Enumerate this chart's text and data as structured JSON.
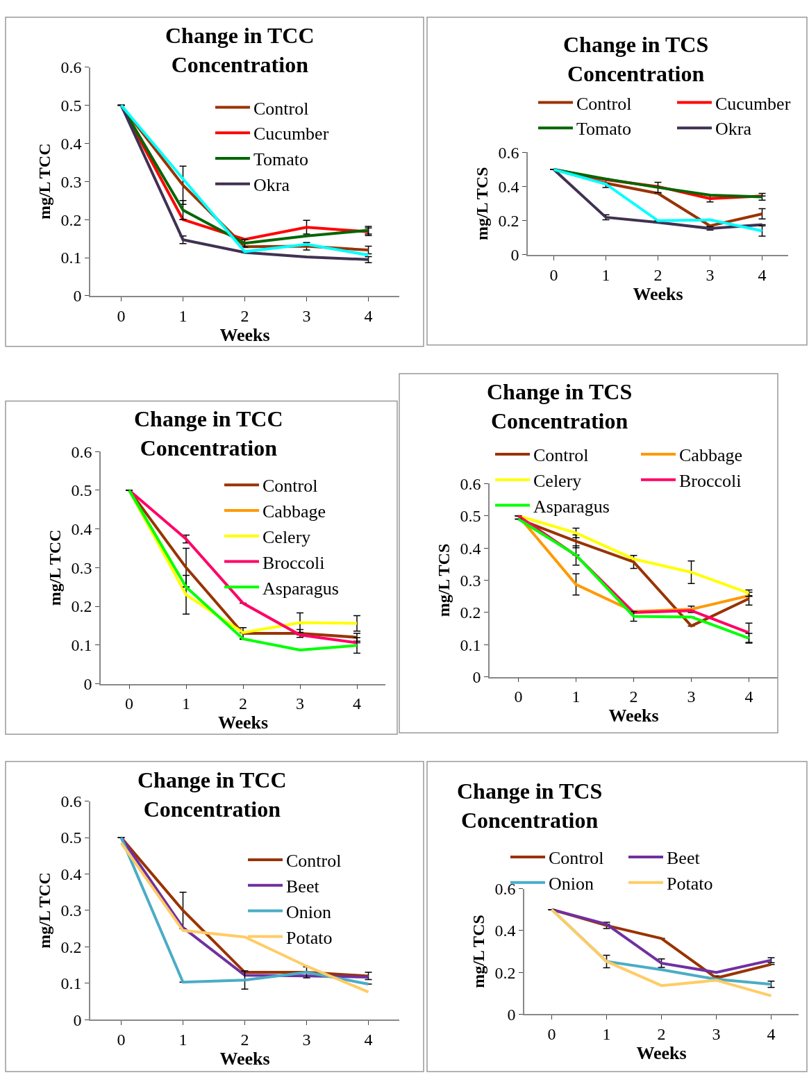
{
  "chart_data": [
    {
      "type": "line",
      "title": "Change in TCC Concentration",
      "xlabel": "Weeks",
      "ylabel": "mg/L TCC",
      "categories": [
        "0",
        "1",
        "2",
        "3",
        "4"
      ],
      "ylim": [
        0,
        0.6
      ],
      "yticks": [
        0,
        0.1,
        0.2,
        0.3,
        0.4,
        0.5,
        0.6
      ],
      "grid": false,
      "legend": "top right",
      "marker": "none",
      "line_style": "solid",
      "series": [
        {
          "name": "Control",
          "color": "#993300",
          "values": [
            0.5,
            0.29,
            0.129,
            0.13,
            0.12
          ],
          "errors": [
            null,
            0.05,
            null,
            0.01,
            0.01
          ]
        },
        {
          "name": "Cucumber",
          "color": "#ff0000",
          "values": [
            0.5,
            0.2,
            0.148,
            0.18,
            0.168
          ],
          "errors": [
            null,
            null,
            null,
            0.018,
            0.01
          ]
        },
        {
          "name": "Tomato",
          "color": "#006600",
          "values": [
            0.5,
            0.225,
            0.138,
            0.157,
            0.172
          ],
          "errors": [
            null,
            0.025,
            0.01,
            null,
            0.01
          ]
        },
        {
          "name": "Okra",
          "color": "#403152",
          "values": [
            0.5,
            0.147,
            0.114,
            0.102,
            0.095
          ],
          "errors": [
            null,
            0.01,
            null,
            null,
            0.008
          ]
        },
        {
          "color": "#00ffff",
          "values": [
            0.5,
            0.307,
            0.116,
            0.135,
            0.107
          ]
        }
      ]
    },
    {
      "type": "line",
      "title": "Change in TCS Concentration",
      "xlabel": "Weeks",
      "ylabel": "mg/L TCS",
      "categories": [
        "0",
        "1",
        "2",
        "3",
        "4"
      ],
      "ylim": [
        0,
        0.6
      ],
      "yticks": [
        0,
        0.2,
        0.4,
        0.6
      ],
      "grid": false,
      "legend": "top",
      "marker": "none",
      "line_style": "solid",
      "series": [
        {
          "name": "Control",
          "color": "#993300",
          "values": [
            0.5,
            0.42,
            0.36,
            0.17,
            0.24
          ],
          "errors": [
            null,
            0.025,
            null,
            null,
            0.03
          ]
        },
        {
          "name": "Cucumber",
          "color": "#ff0000",
          "values": [
            0.5,
            0.44,
            0.4,
            0.33,
            0.345
          ],
          "errors": [
            null,
            null,
            null,
            0.02,
            null
          ]
        },
        {
          "name": "Tomato",
          "color": "#006600",
          "values": [
            0.5,
            0.445,
            0.395,
            0.35,
            0.34
          ],
          "errors": [
            null,
            null,
            0.03,
            null,
            0.02
          ]
        },
        {
          "name": "Okra",
          "color": "#403152",
          "values": [
            0.5,
            0.22,
            0.19,
            0.155,
            0.177
          ],
          "errors": [
            null,
            0.015,
            null,
            0.01,
            null
          ]
        },
        {
          "color": "#00ffff",
          "values": [
            0.5,
            0.415,
            0.2,
            0.205,
            0.14
          ],
          "errors": [
            null,
            null,
            null,
            null,
            0.03
          ]
        }
      ]
    },
    {
      "type": "line",
      "title": "Change in TCC Concentration",
      "xlabel": "Weeks",
      "ylabel": "mg/L TCC",
      "categories": [
        "0",
        "1",
        "2",
        "3",
        "4"
      ],
      "ylim": [
        0,
        0.6
      ],
      "yticks": [
        0,
        0.1,
        0.2,
        0.3,
        0.4,
        0.5,
        0.6
      ],
      "grid": false,
      "legend": "top right",
      "marker": "none",
      "line_style": "solid",
      "series": [
        {
          "name": "Control",
          "color": "#993300",
          "values": [
            0.5,
            0.3,
            0.13,
            0.13,
            0.12
          ],
          "errors": [
            null,
            0.05,
            0.015,
            0.01,
            0.01
          ]
        },
        {
          "name": "Cabbage",
          "color": "#ff9900",
          "values": [
            null,
            null,
            null,
            null,
            null
          ]
        },
        {
          "name": "Celery",
          "color": "#ffff00",
          "values": [
            0.5,
            0.23,
            0.132,
            0.158,
            0.156
          ],
          "errors": [
            null,
            0.05,
            null,
            0.025,
            0.02
          ]
        },
        {
          "name": "Broccoli",
          "color": "#ff0066",
          "values": [
            0.5,
            0.374,
            0.208,
            0.126,
            0.106
          ],
          "errors": [
            null,
            0.01,
            null,
            null,
            null
          ]
        },
        {
          "name": "Asparagus",
          "color": "#00ff00",
          "values": [
            0.5,
            0.25,
            0.116,
            0.087,
            0.099
          ],
          "errors": [
            null,
            null,
            null,
            null,
            0.02
          ]
        }
      ]
    },
    {
      "type": "line",
      "title": "Change in TCS Concentration",
      "xlabel": "Weeks",
      "ylabel": "mg/L TCS",
      "categories": [
        "0",
        "1",
        "2",
        "3",
        "4"
      ],
      "ylim": [
        0,
        0.6
      ],
      "yticks": [
        0,
        0.1,
        0.2,
        0.3,
        0.4,
        0.5,
        0.6
      ],
      "grid": false,
      "legend": "top",
      "marker": "none",
      "line_style": "solid",
      "series": [
        {
          "name": "Control",
          "color": "#993300",
          "values": [
            0.49,
            0.421,
            0.357,
            0.158,
            0.243
          ],
          "errors": [
            null,
            0.02,
            0.02,
            null,
            0.02
          ]
        },
        {
          "name": "Cabbage",
          "color": "#ff9900",
          "values": [
            0.5,
            0.287,
            0.203,
            0.21,
            0.252
          ],
          "errors": [
            null,
            0.033,
            null,
            0.01,
            null
          ]
        },
        {
          "name": "Celery",
          "color": "#ffff00",
          "values": [
            0.5,
            0.447,
            0.366,
            0.325,
            0.26
          ],
          "errors": [
            null,
            0.015,
            null,
            0.035,
            0.01
          ]
        },
        {
          "name": "Broccoli",
          "color": "#ff0066",
          "values": [
            0.5,
            0.377,
            0.2,
            0.206,
            0.137
          ],
          "errors": [
            null,
            0.03,
            null,
            null,
            0.03
          ]
        },
        {
          "name": "Asparagus",
          "color": "#00ff00",
          "values": [
            0.49,
            0.378,
            0.188,
            0.186,
            0.12
          ],
          "errors": [
            null,
            null,
            0.015,
            null,
            0.015
          ]
        }
      ]
    },
    {
      "type": "line",
      "title": "Change in TCC Concentration",
      "xlabel": "Weeks",
      "ylabel": "mg/L TCC",
      "categories": [
        "0",
        "1",
        "2",
        "3",
        "4"
      ],
      "ylim": [
        0,
        0.6
      ],
      "yticks": [
        0,
        0.1,
        0.2,
        0.3,
        0.4,
        0.5,
        0.6
      ],
      "grid": false,
      "legend": "right",
      "marker": "none",
      "line_style": "solid",
      "series": [
        {
          "name": "Control",
          "color": "#993300",
          "values": [
            0.5,
            0.3,
            0.13,
            0.13,
            0.12
          ],
          "errors": [
            null,
            0.05,
            null,
            null,
            0.01
          ]
        },
        {
          "name": "Beet",
          "color": "#7030a0",
          "values": [
            0.5,
            0.253,
            0.122,
            0.12,
            0.117
          ]
        },
        {
          "name": "Onion",
          "color": "#4bacc6",
          "values": [
            0.5,
            0.103,
            0.109,
            0.13,
            0.098
          ],
          "errors": [
            null,
            null,
            0.025,
            0.015,
            null
          ]
        },
        {
          "name": "Potato",
          "color": "#ffcc66",
          "values": [
            0.485,
            0.245,
            0.227,
            0.147,
            0.076
          ]
        }
      ]
    },
    {
      "type": "line",
      "title": "Change in TCS Concentration",
      "xlabel": "Weeks",
      "ylabel": "mg/L TCS",
      "categories": [
        "0",
        "1",
        "2",
        "3",
        "4"
      ],
      "ylim": [
        0,
        0.6
      ],
      "yticks": [
        0,
        0.2,
        0.4,
        0.6
      ],
      "grid": false,
      "legend": "top",
      "marker": "none",
      "line_style": "solid",
      "series": [
        {
          "name": "Control",
          "color": "#993300",
          "values": [
            0.5,
            0.424,
            0.362,
            0.173,
            0.238
          ],
          "errors": [
            null,
            0.015,
            null,
            0.01,
            null
          ]
        },
        {
          "name": "Beet",
          "color": "#7030a0",
          "values": [
            0.5,
            0.43,
            0.244,
            0.2,
            0.258
          ],
          "errors": [
            null,
            null,
            0.02,
            null,
            0.012
          ]
        },
        {
          "name": "Onion",
          "color": "#4bacc6",
          "values": [
            0.5,
            0.252,
            0.213,
            0.167,
            0.143
          ],
          "errors": [
            null,
            0.03,
            null,
            null,
            0.015
          ]
        },
        {
          "name": "Potato",
          "color": "#ffcc66",
          "values": [
            0.5,
            0.252,
            0.137,
            0.162,
            0.088
          ]
        }
      ]
    }
  ]
}
